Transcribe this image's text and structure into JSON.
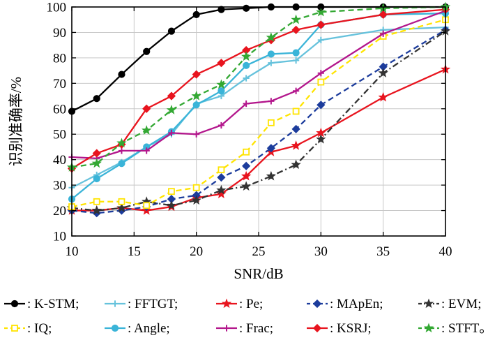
{
  "chart_data": {
    "type": "line",
    "xlabel": "SNR/dB",
    "ylabel": "识别准确率/%",
    "x_ticks": [
      10,
      15,
      20,
      25,
      30,
      35,
      40
    ],
    "y_ticks": [
      10,
      20,
      30,
      40,
      50,
      60,
      70,
      80,
      90,
      100
    ],
    "xlim": [
      10,
      40
    ],
    "ylim": [
      10,
      100
    ],
    "grid": true,
    "legend_position": "below",
    "legend_suffix": "。",
    "series": [
      {
        "name": "K-STM",
        "color": "#000000",
        "dash": "solid",
        "marker": "circle",
        "x": [
          10,
          12,
          14,
          16,
          18,
          20,
          22,
          24,
          26,
          28,
          30,
          35,
          40
        ],
        "y": [
          59,
          64,
          73.5,
          82.5,
          90.5,
          97,
          99,
          99.5,
          100,
          100,
          100,
          100,
          100
        ]
      },
      {
        "name": "FFTGT",
        "color": "#66c2dc",
        "dash": "solid",
        "marker": "plus",
        "x": [
          10,
          12,
          14,
          16,
          18,
          20,
          22,
          24,
          26,
          28,
          30,
          35,
          40
        ],
        "y": [
          29,
          34,
          39,
          45,
          50,
          62,
          65,
          72,
          78,
          79,
          87,
          91,
          92
        ]
      },
      {
        "name": "Pe",
        "color": "#e8141e",
        "dash": "solid",
        "marker": "star",
        "x": [
          10,
          12,
          14,
          16,
          18,
          20,
          22,
          24,
          26,
          28,
          30,
          35,
          40
        ],
        "y": [
          20,
          20,
          21,
          20,
          21.5,
          25,
          26.5,
          33.5,
          43,
          45.5,
          50.5,
          64.5,
          75.5
        ]
      },
      {
        "name": "MApEn",
        "color": "#1c3c9c",
        "dash": "dash",
        "marker": "diamond",
        "x": [
          10,
          12,
          14,
          16,
          18,
          20,
          22,
          24,
          26,
          28,
          30,
          35,
          40
        ],
        "y": [
          20,
          19,
          20,
          21.5,
          24.5,
          26,
          33,
          37.5,
          44.5,
          52,
          61.5,
          76.5,
          91
        ]
      },
      {
        "name": "EVM",
        "color": "#333333",
        "dash": "dashdot",
        "marker": "star",
        "x": [
          10,
          12,
          14,
          16,
          18,
          20,
          22,
          24,
          26,
          28,
          30,
          35,
          40
        ],
        "y": [
          21,
          20,
          21,
          23.5,
          22,
          24,
          28,
          29.5,
          33.5,
          38,
          48,
          74,
          90.5
        ]
      },
      {
        "name": "IQ",
        "color": "#ffe400",
        "dash": "dash",
        "marker": "square",
        "x": [
          10,
          12,
          14,
          16,
          18,
          20,
          22,
          24,
          26,
          28,
          30,
          35,
          40
        ],
        "y": [
          21.5,
          23.5,
          23.5,
          22,
          27.5,
          29,
          36,
          43,
          54.5,
          59,
          70.5,
          88.5,
          95
        ]
      },
      {
        "name": "Angle",
        "color": "#3ab4d8",
        "dash": "solid",
        "marker": "circle",
        "x": [
          10,
          12,
          14,
          16,
          18,
          20,
          22,
          24,
          26,
          28,
          30,
          35,
          40
        ],
        "y": [
          24.5,
          32.5,
          38.5,
          45,
          51,
          61.5,
          67,
          77,
          81.5,
          82,
          93,
          97,
          97.5
        ]
      },
      {
        "name": "Frac",
        "color": "#b3168c",
        "dash": "solid",
        "marker": "plus",
        "x": [
          10,
          12,
          14,
          16,
          18,
          20,
          22,
          24,
          26,
          28,
          30,
          35,
          40
        ],
        "y": [
          41,
          40.5,
          43.5,
          43.5,
          50.5,
          50,
          53.5,
          62,
          63,
          67,
          74,
          89.5,
          98.5
        ]
      },
      {
        "name": "KSRJ",
        "color": "#e8141e",
        "dash": "solid",
        "marker": "diamond",
        "x": [
          10,
          12,
          14,
          16,
          18,
          20,
          22,
          24,
          26,
          28,
          30,
          35,
          40
        ],
        "y": [
          36.5,
          42.5,
          46,
          60,
          65,
          73.5,
          78,
          83,
          87,
          91,
          93,
          97,
          99
        ]
      },
      {
        "name": "STFT",
        "color": "#33a833",
        "dash": "dash",
        "marker": "star",
        "x": [
          10,
          12,
          14,
          16,
          18,
          20,
          22,
          24,
          26,
          28,
          30,
          35,
          40
        ],
        "y": [
          37,
          38.5,
          46.5,
          51.5,
          59.5,
          65,
          69.5,
          80.5,
          88,
          95,
          98,
          99.5,
          100
        ]
      }
    ]
  }
}
